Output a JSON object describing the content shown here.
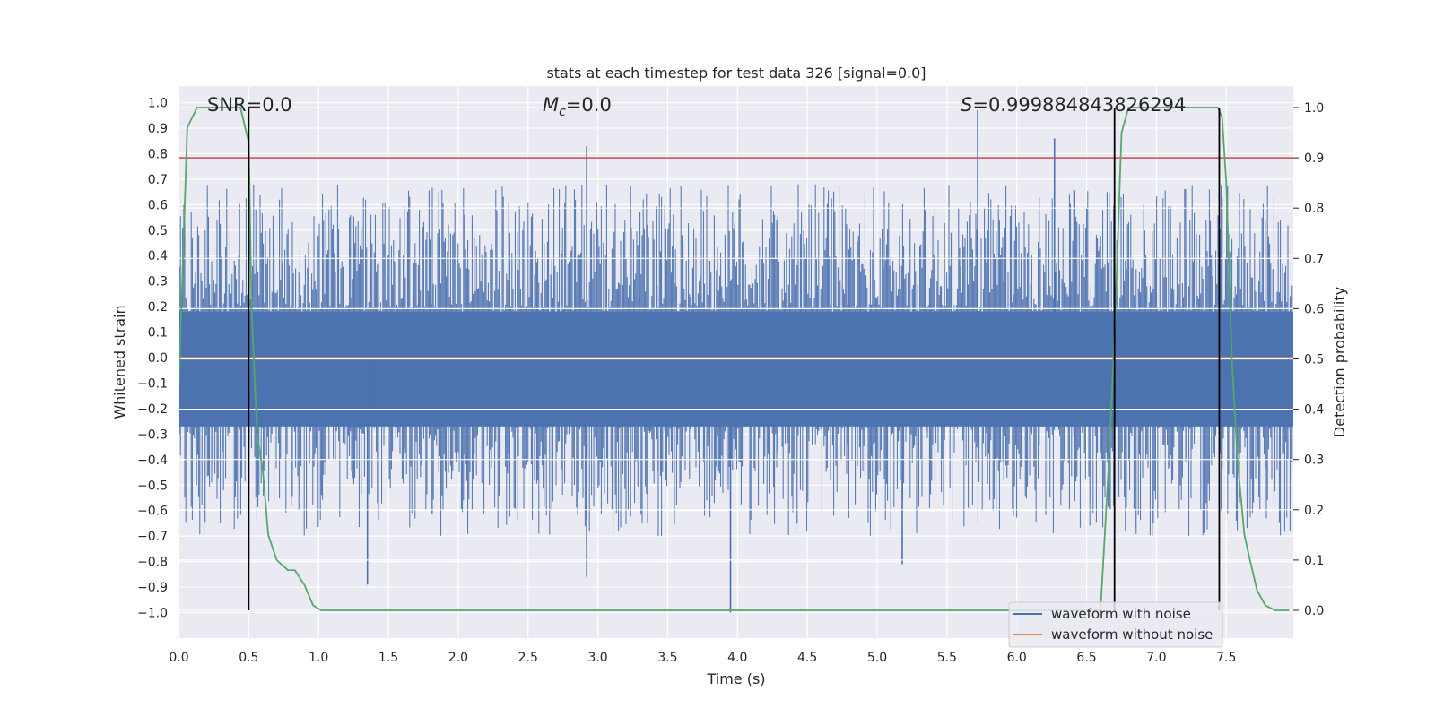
{
  "chart_data": {
    "type": "line",
    "title": "stats at each timestep for test data 326 [signal=0.0]",
    "xlabel": "Time (s)",
    "ylabel": "Whitened strain",
    "y2label": "Detection probability",
    "xlim": [
      0.0,
      8.0
    ],
    "ylim": [
      -1.1,
      1.1
    ],
    "y2lim": [
      -0.05,
      1.05
    ],
    "xticks": [
      "0.0",
      "0.5",
      "1.0",
      "1.5",
      "2.0",
      "2.5",
      "3.0",
      "3.5",
      "4.0",
      "4.5",
      "5.0",
      "5.5",
      "6.0",
      "6.5",
      "7.0",
      "7.5"
    ],
    "yticks": [
      "1.0",
      "0.9",
      "0.8",
      "0.7",
      "0.6",
      "0.5",
      "0.4",
      "0.3",
      "0.2",
      "0.1",
      "0.0",
      "−0.1",
      "−0.2",
      "−0.3",
      "−0.4",
      "−0.5",
      "−0.6",
      "−0.7",
      "−0.8",
      "−0.9",
      "−1.0"
    ],
    "y2ticks": [
      "1.0",
      "0.9",
      "0.8",
      "0.7",
      "0.6",
      "0.5",
      "0.4",
      "0.3",
      "0.2",
      "0.1",
      "0.0"
    ],
    "annotations": {
      "snr": "SNR=0.0",
      "mc_symbol": "M",
      "mc_sub": "c",
      "mc_value": "=0.0",
      "s_symbol": "S",
      "s_value": "=0.999884843826294"
    },
    "threshold_line": {
      "y2": 0.9,
      "color": "#c44e52"
    },
    "vertical_markers": [
      0.5,
      6.7,
      7.45
    ],
    "series": [
      {
        "name": "waveform with noise",
        "color": "#4c72b0",
        "kind": "noise",
        "typical_range": [
          -0.45,
          0.4
        ],
        "peaks": [
          {
            "t": 2.92,
            "v": 0.83
          },
          {
            "t": 5.72,
            "v": 0.97
          },
          {
            "t": 6.27,
            "v": 0.86
          },
          {
            "t": 3.95,
            "v": -1.0
          },
          {
            "t": 1.35,
            "v": -0.89
          },
          {
            "t": 2.92,
            "v": -0.86
          },
          {
            "t": 0.5,
            "v": -0.82
          },
          {
            "t": 5.18,
            "v": -0.81
          }
        ]
      },
      {
        "name": "waveform without noise",
        "color": "#dd8452",
        "kind": "flat",
        "value": 0.0
      },
      {
        "name": "detection probability",
        "color": "#55a868",
        "axis": "right",
        "x": [
          0.0,
          0.06,
          0.13,
          0.2,
          0.3,
          0.38,
          0.44,
          0.5,
          0.52,
          0.56,
          0.6,
          0.64,
          0.7,
          0.78,
          0.83,
          0.9,
          0.96,
          1.02,
          1.08,
          1.2,
          2.0,
          2.1,
          3.0,
          4.0,
          5.0,
          6.0,
          6.6,
          6.66,
          6.7,
          6.75,
          6.8,
          7.3,
          7.44,
          7.47,
          7.5,
          7.54,
          7.58,
          7.63,
          7.67,
          7.72,
          7.78,
          7.85,
          7.95
        ],
        "y": [
          0.45,
          0.96,
          1.0,
          1.0,
          1.0,
          1.0,
          1.0,
          0.93,
          0.6,
          0.35,
          0.28,
          0.15,
          0.1,
          0.08,
          0.08,
          0.05,
          0.01,
          0.0,
          0.0,
          0.0,
          0.0,
          0.0,
          0.0,
          0.0,
          0.0,
          0.0,
          0.0,
          0.3,
          0.55,
          0.95,
          1.0,
          1.0,
          1.0,
          0.98,
          0.85,
          0.5,
          0.3,
          0.15,
          0.1,
          0.04,
          0.01,
          0.0,
          0.0
        ]
      }
    ],
    "legend": {
      "placement": "lower-right",
      "entries": [
        {
          "label": "waveform with noise",
          "color": "#4c72b0"
        },
        {
          "label": "waveform without noise",
          "color": "#dd8452"
        }
      ]
    }
  }
}
